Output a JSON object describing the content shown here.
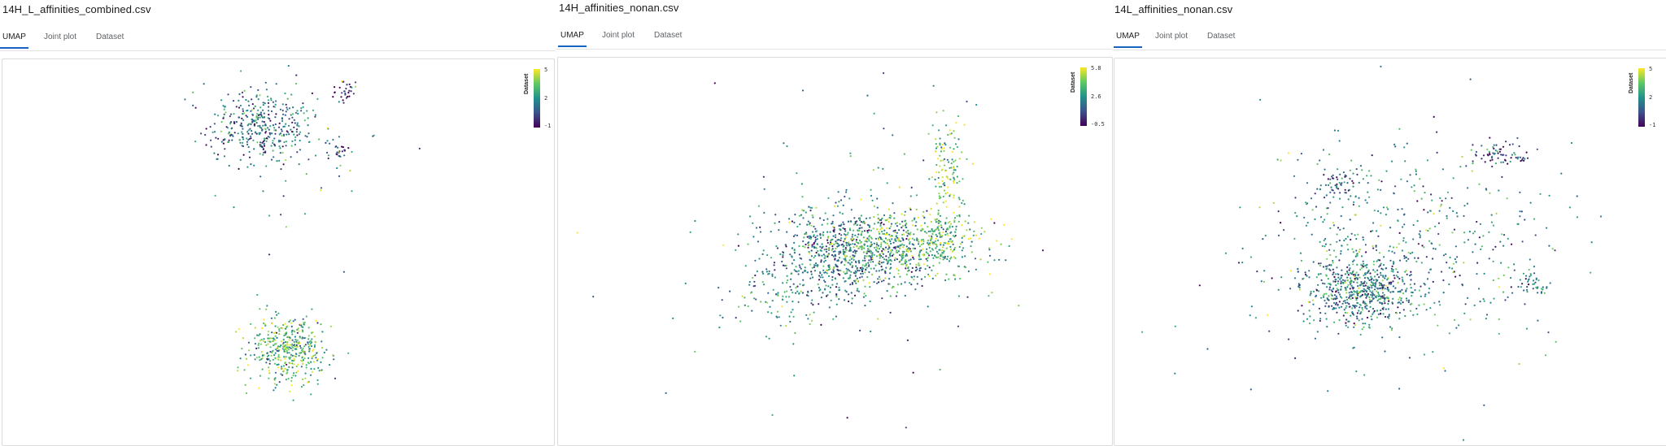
{
  "panels": [
    {
      "title": "14H_L_affinities_combined.csv",
      "tabs": [
        {
          "label": "UMAP",
          "active": true
        },
        {
          "label": "Joint plot",
          "active": false
        },
        {
          "label": "Dataset",
          "active": false
        }
      ],
      "colorbar": {
        "title": "Dataset",
        "ticks": [
          "5",
          "2",
          "-1"
        ]
      }
    },
    {
      "title": "14H_affinities_nonan.csv",
      "tabs": [
        {
          "label": "UMAP",
          "active": true
        },
        {
          "label": "Joint plot",
          "active": false
        },
        {
          "label": "Dataset",
          "active": false
        }
      ],
      "colorbar": {
        "title": "Dataset",
        "ticks": [
          "5.8",
          "2.6",
          "-0.5"
        ]
      }
    },
    {
      "title": "14L_affinities_nonan.csv",
      "tabs": [
        {
          "label": "UMAP",
          "active": true
        },
        {
          "label": "Joint plot",
          "active": false
        },
        {
          "label": "Dataset",
          "active": false
        }
      ],
      "colorbar": {
        "title": "Dataset",
        "ticks": [
          "5",
          "2",
          "-1"
        ]
      }
    }
  ],
  "colors": {
    "viridis": [
      "#440154",
      "#3b528b",
      "#21918c",
      "#5ec962",
      "#fde725"
    ],
    "accent": "#1565c0"
  },
  "chart_data": [
    {
      "type": "scatter",
      "title": "",
      "color_variable": "Dataset",
      "color_range": [
        -1,
        5
      ],
      "colormap": "viridis",
      "note_clusters": [
        {
          "center": [
            -0.1,
            0.55
          ],
          "spread": [
            0.14,
            0.09
          ],
          "count": 380,
          "value_mean": 1.2
        },
        {
          "center": [
            0.05,
            -0.55
          ],
          "spread": [
            0.11,
            0.09
          ],
          "count": 420,
          "value_mean": 3.0
        },
        {
          "center": [
            0.35,
            0.72
          ],
          "spread": [
            0.03,
            0.03
          ],
          "count": 30,
          "value_mean": 0.0
        },
        {
          "center": [
            0.32,
            0.43
          ],
          "spread": [
            0.03,
            0.03
          ],
          "count": 25,
          "value_mean": 1.0
        },
        {
          "center": [
            0.15,
            0.5
          ],
          "spread": [
            0.25,
            0.25
          ],
          "count": 60,
          "value_mean": 2.0
        }
      ]
    },
    {
      "type": "scatter",
      "title": "",
      "color_variable": "Dataset",
      "color_range": [
        -0.5,
        5.8
      ],
      "colormap": "viridis",
      "note_clusters": [
        {
          "center": [
            0.0,
            0.0
          ],
          "spread": [
            0.18,
            0.13
          ],
          "count": 700,
          "value_mean": 1.8
        },
        {
          "center": [
            0.2,
            0.05
          ],
          "spread": [
            0.2,
            0.1
          ],
          "count": 500,
          "value_mean": 4.0
        },
        {
          "center": [
            0.42,
            0.45
          ],
          "spread": [
            0.04,
            0.12
          ],
          "count": 120,
          "value_mean": 4.2
        },
        {
          "center": [
            0.38,
            0.1
          ],
          "spread": [
            0.04,
            0.08
          ],
          "count": 80,
          "value_mean": 3.5
        },
        {
          "center": [
            -0.3,
            -0.2
          ],
          "spread": [
            0.12,
            0.12
          ],
          "count": 120,
          "value_mean": 3.0
        },
        {
          "center": [
            0.0,
            0.0
          ],
          "spread": [
            0.45,
            0.45
          ],
          "count": 80,
          "value_mean": 2.5
        }
      ]
    },
    {
      "type": "scatter",
      "title": "",
      "color_variable": "Dataset",
      "color_range": [
        -1,
        5
      ],
      "colormap": "viridis",
      "note_clusters": [
        {
          "center": [
            -0.15,
            -0.15
          ],
          "spread": [
            0.1,
            0.09
          ],
          "count": 600,
          "value_mean": 1.5
        },
        {
          "center": [
            0.0,
            0.1
          ],
          "spread": [
            0.25,
            0.25
          ],
          "count": 450,
          "value_mean": 1.8
        },
        {
          "center": [
            -0.22,
            0.38
          ],
          "spread": [
            0.04,
            0.04
          ],
          "count": 60,
          "value_mean": 0.8
        },
        {
          "center": [
            0.35,
            0.55
          ],
          "spread": [
            0.05,
            0.04
          ],
          "count": 70,
          "value_mean": 0.2
        },
        {
          "center": [
            0.45,
            -0.12
          ],
          "spread": [
            0.03,
            0.03
          ],
          "count": 40,
          "value_mean": 1.5
        },
        {
          "center": [
            0.0,
            0.0
          ],
          "spread": [
            0.55,
            0.5
          ],
          "count": 70,
          "value_mean": 2.0
        }
      ]
    }
  ]
}
